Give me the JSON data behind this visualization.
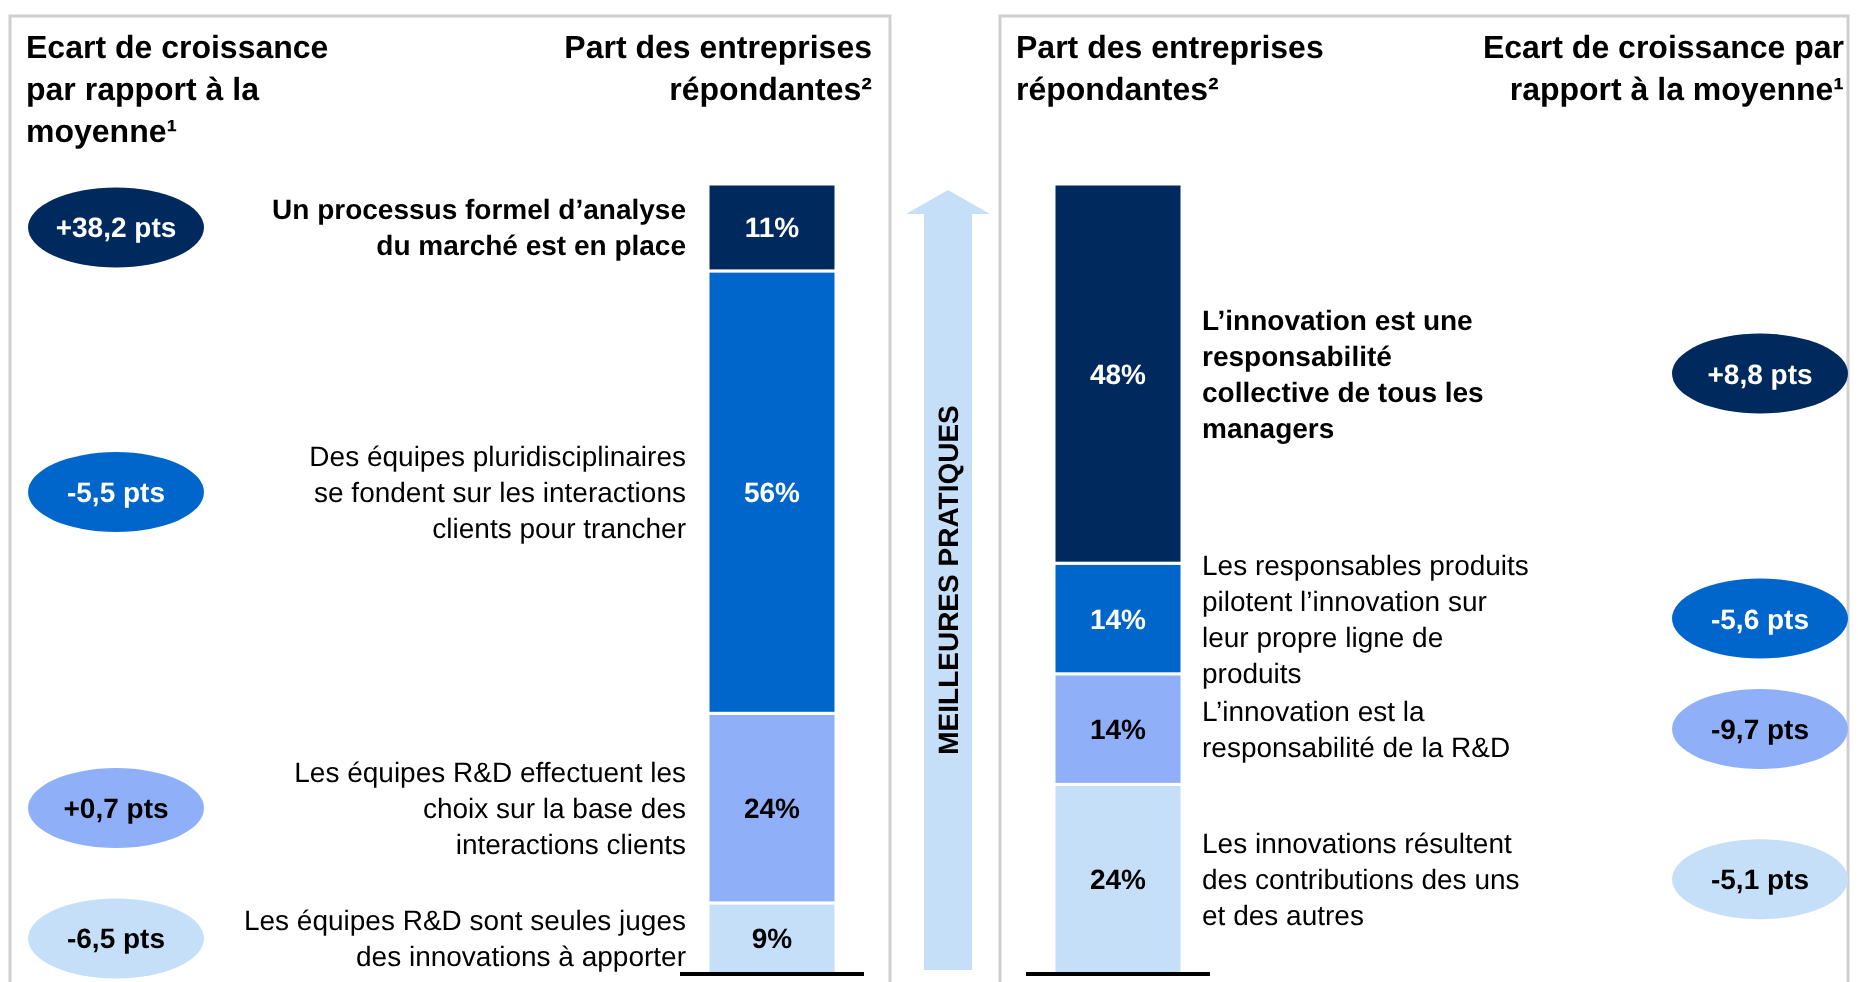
{
  "chart_data": [
    {
      "type": "bar",
      "stacked": true,
      "title": "Part des entreprises répondantes²",
      "categories": [
        null
      ],
      "series": [
        {
          "name": "Les équipes R&D sont seules juges des innovations à apporter",
          "color": "#c6dff8",
          "values": [
            9
          ],
          "value_labels": [
            "9%"
          ]
        },
        {
          "name": "Les équipes R&D effectuent les choix sur la base des interactions clients",
          "color": "#8fb0f8",
          "values": [
            24
          ],
          "value_labels": [
            "24%"
          ]
        },
        {
          "name": "Des équipes pluridisciplinaires se fondent sur les interactions clients pour trancher",
          "color": "#0066cc",
          "values": [
            56
          ],
          "value_labels": [
            "56%"
          ]
        },
        {
          "name": "Un processus formel d’analyse du marché est en place",
          "color": "#00295e",
          "values": [
            11
          ],
          "value_labels": [
            "11%"
          ]
        }
      ],
      "annotations": [
        "Ecart de croissance par rapport à la moyenne¹",
        "-6,5 pts",
        "+0,7 pts",
        "-5,5 pts",
        "+38,2 pts"
      ]
    },
    {
      "type": "bar",
      "stacked": true,
      "title": "Part des entreprises répondantes²",
      "categories": [
        null
      ],
      "series": [
        {
          "name": "Les innovations résultent des contributions des uns et des autres",
          "color": "#c6dff8",
          "values": [
            24
          ],
          "value_labels": [
            "24%"
          ]
        },
        {
          "name": "L’innovation est la responsabilité de la R&D",
          "color": "#8fb0f8",
          "values": [
            14
          ],
          "value_labels": [
            "14%"
          ]
        },
        {
          "name": "Les responsables produits pilotent l’innovation sur leur propre ligne de produits",
          "color": "#0066cc",
          "values": [
            14
          ],
          "value_labels": [
            "14%"
          ]
        },
        {
          "name": "L’innovation est une responsabilité collective de tous les managers",
          "color": "#00295e",
          "values": [
            48
          ],
          "value_labels": [
            "48%"
          ]
        }
      ],
      "annotations": [
        "Ecart de croissance par rapport à la moyenne¹",
        "-5,1 pts",
        "-9,7 pts",
        "-5,6 pts",
        "+8,8 pts",
        "MEILLEURES PRATIQUES"
      ]
    }
  ]
}
